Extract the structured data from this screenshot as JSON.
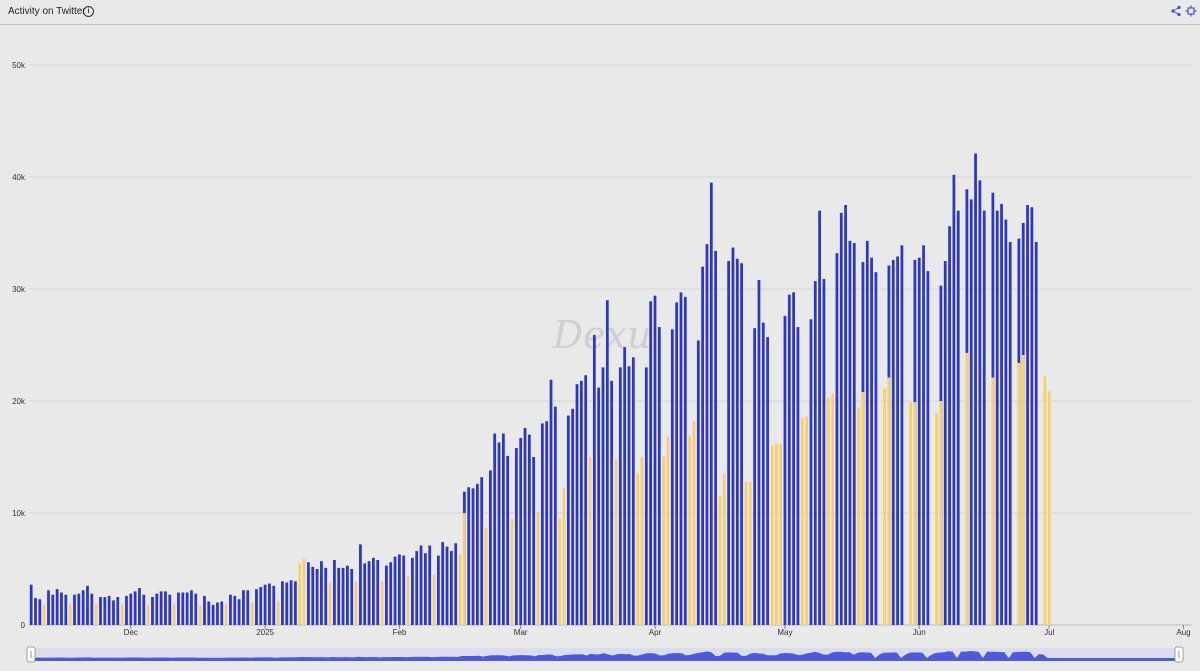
{
  "header": {
    "title": "Activity on Twitter",
    "info_icon": "info-icon",
    "share_icon": "share-icon",
    "expand_icon": "expand-icon"
  },
  "watermark": "Dexu",
  "colors": {
    "primary": "#2e35c9",
    "secondary": "#f7d06a",
    "grid": "#d5d5d9",
    "navigator": "#3d4bd6"
  },
  "chart_data": {
    "type": "bar",
    "x_type": "date",
    "x_range": [
      "2024-11-08",
      "2025-08-02"
    ],
    "x_ticks": [
      {
        "date": "2024-12-01",
        "label": "Dec"
      },
      {
        "date": "2025-01-01",
        "label": "2025"
      },
      {
        "date": "2025-02-01",
        "label": "Feb"
      },
      {
        "date": "2025-03-01",
        "label": "Mar"
      },
      {
        "date": "2025-04-01",
        "label": "Apr"
      },
      {
        "date": "2025-05-01",
        "label": "May"
      },
      {
        "date": "2025-06-01",
        "label": "Jun"
      },
      {
        "date": "2025-07-01",
        "label": "Jul"
      },
      {
        "date": "2025-08-01",
        "label": "Aug"
      }
    ],
    "y_ticks": [
      {
        "value": 0,
        "label": "0"
      },
      {
        "value": 10000,
        "label": "10k"
      },
      {
        "value": 20000,
        "label": "20k"
      },
      {
        "value": 30000,
        "label": "30k"
      },
      {
        "value": 40000,
        "label": "40k"
      },
      {
        "value": 50000,
        "label": "50k"
      }
    ],
    "ylim": [
      0,
      50000
    ],
    "grid": true,
    "legend": "none",
    "series": [
      {
        "color": "#2e35c9",
        "values": [
          3600,
          2400,
          2300,
          0,
          3100,
          2700,
          3200,
          2900,
          2700,
          0,
          2700,
          2800,
          3100,
          3500,
          2800,
          0,
          2500,
          2500,
          2600,
          2200,
          2500,
          0,
          2600,
          2800,
          3000,
          3300,
          2700,
          0,
          2500,
          2800,
          3000,
          3000,
          2700,
          0,
          2900,
          2900,
          2900,
          3100,
          2800,
          0,
          2600,
          2100,
          1800,
          2000,
          2100,
          0,
          2700,
          2600,
          2300,
          3100,
          3100,
          0,
          3200,
          3400,
          3600,
          3700,
          3500,
          0,
          3900,
          3800,
          4000,
          3900,
          0,
          0,
          5600,
          5200,
          5000,
          5700,
          5100,
          0,
          5800,
          5100,
          5100,
          5300,
          5000,
          0,
          7200,
          5500,
          5700,
          6000,
          5800,
          0,
          5300,
          5600,
          6100,
          6300,
          6200,
          0,
          6000,
          6600,
          7100,
          6400,
          7100,
          0,
          6200,
          7400,
          7000,
          6600,
          7300,
          0,
          11900,
          12300,
          12200,
          12600,
          13200,
          0,
          13800,
          17100,
          16300,
          17100,
          15100,
          0,
          15800,
          16700,
          17600,
          17000,
          15000,
          0,
          18000,
          18200,
          21900,
          19500,
          0,
          0,
          18700,
          19300,
          21500,
          21800,
          22300,
          0,
          25900,
          21200,
          23000,
          29000,
          21800,
          0,
          23000,
          24800,
          23100,
          23900,
          0,
          0,
          23000,
          28900,
          29400,
          26600,
          0,
          0,
          26400,
          28800,
          29700,
          29300,
          0,
          0,
          25400,
          32000,
          34000,
          39500,
          33400,
          0,
          0,
          32500,
          33700,
          32700,
          32300,
          0,
          0,
          26500,
          30800,
          27000,
          25700,
          0,
          0,
          0,
          27600,
          29500,
          29700,
          26600,
          0,
          0,
          27300,
          30700,
          37000,
          30900,
          0,
          0,
          33200,
          36800,
          37500,
          34300,
          34100,
          0,
          32400,
          34300,
          32800,
          31500,
          0,
          0,
          32100,
          32600,
          32900,
          33900,
          0,
          0,
          32600,
          32800,
          33900,
          31600,
          0,
          0,
          30300,
          32500,
          35600,
          40200,
          37000,
          0,
          38900,
          38000,
          42100,
          39700,
          37000,
          0,
          38600,
          37000,
          37600,
          36200,
          34200,
          0,
          34500,
          35900,
          37500,
          37300,
          34200,
          0
        ]
      },
      {
        "color": "#f7d06a",
        "values": [
          0,
          0,
          0,
          1800,
          0,
          0,
          0,
          0,
          0,
          1900,
          0,
          0,
          0,
          0,
          0,
          1900,
          0,
          0,
          0,
          0,
          0,
          1900,
          0,
          0,
          0,
          0,
          0,
          1800,
          0,
          0,
          0,
          0,
          0,
          1900,
          0,
          0,
          0,
          0,
          0,
          1700,
          0,
          0,
          0,
          0,
          0,
          1900,
          0,
          0,
          0,
          0,
          0,
          2000,
          0,
          0,
          0,
          0,
          0,
          2100,
          0,
          0,
          0,
          0,
          5500,
          5900,
          0,
          0,
          0,
          0,
          0,
          3800,
          0,
          0,
          0,
          0,
          0,
          3900,
          0,
          0,
          0,
          0,
          0,
          3900,
          0,
          0,
          0,
          0,
          0,
          4400,
          0,
          0,
          0,
          0,
          0,
          4500,
          0,
          0,
          0,
          0,
          0,
          6300,
          10000,
          0,
          0,
          0,
          0,
          8700,
          0,
          0,
          0,
          0,
          0,
          9500,
          0,
          0,
          0,
          0,
          0,
          10100,
          0,
          0,
          0,
          0,
          9500,
          12200,
          0,
          0,
          0,
          0,
          0,
          15000,
          0,
          0,
          0,
          0,
          0,
          14800,
          0,
          0,
          0,
          0,
          13500,
          15000,
          0,
          0,
          0,
          0,
          15100,
          16800,
          0,
          0,
          0,
          0,
          16900,
          18200,
          0,
          0,
          0,
          0,
          0,
          11500,
          13500,
          0,
          0,
          0,
          0,
          12800,
          12800,
          0,
          0,
          0,
          0,
          16000,
          16200,
          16200,
          0,
          0,
          0,
          0,
          18500,
          18600,
          0,
          0,
          0,
          0,
          20300,
          20700,
          0,
          0,
          0,
          0,
          0,
          19400,
          20800,
          0,
          0,
          0,
          0,
          21100,
          22100,
          0,
          0,
          0,
          0,
          19900,
          19900,
          0,
          0,
          0,
          0,
          18900,
          20000,
          0,
          0,
          0,
          0,
          0,
          24300,
          0,
          0,
          0,
          0,
          0,
          22100,
          0,
          0,
          0,
          0,
          0,
          23400,
          24100,
          0,
          0,
          0,
          0,
          22200,
          20900
        ]
      }
    ]
  }
}
